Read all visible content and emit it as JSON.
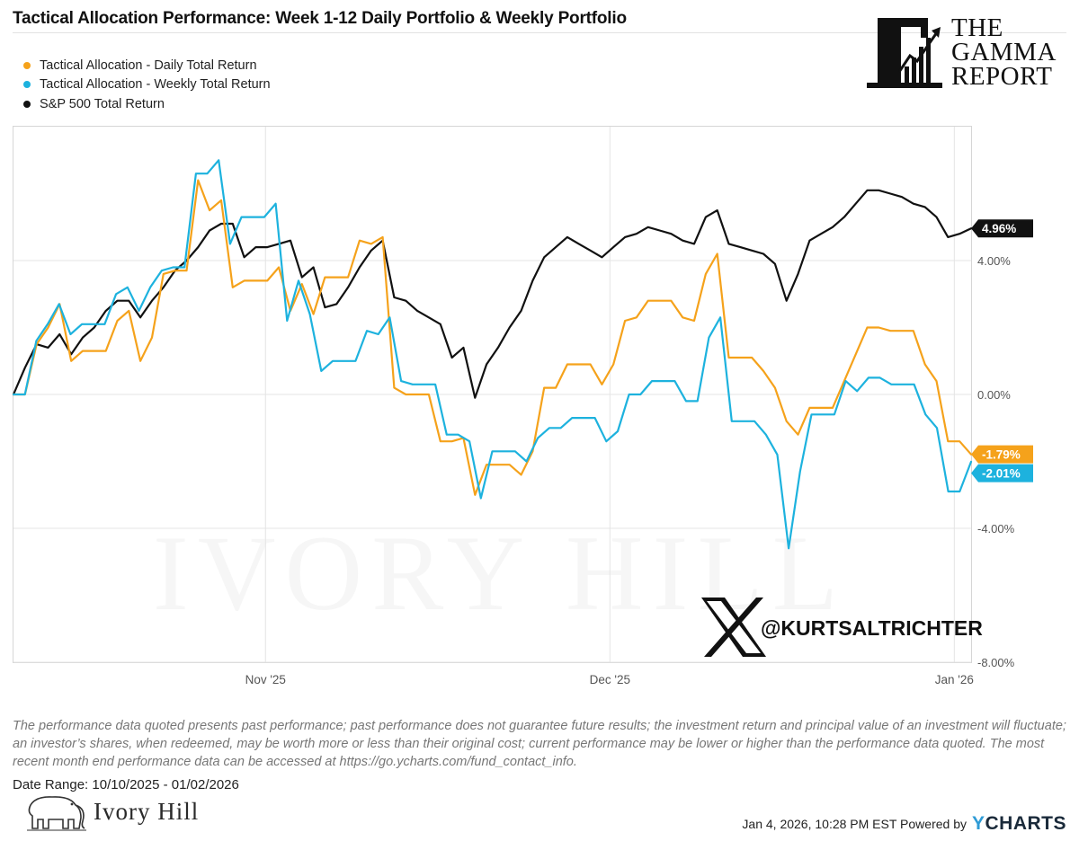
{
  "title": "Tactical Allocation Performance: Week 1-12 Daily Portfolio & Weekly Portfolio",
  "brand": {
    "name_lines": [
      "THE",
      "GAMMA",
      "REPORT"
    ]
  },
  "watermark": "IVORY HILL",
  "twitter_handle": "@KURTSALTRICHTER",
  "disclaimer": "The performance data quoted presents past performance; past performance does not guarantee future results; the investment return and principal value of an investment will fluctuate; an investor’s shares, when redeemed, may be worth more or less than their original cost; current performance may be lower or higher than the performance data quoted. The most recent month end performance data can be accessed at https://go.ycharts.com/fund_contact_info.",
  "date_range": "Date Range: 10/10/2025 - 01/02/2026",
  "footer_brand": "Ivory Hill",
  "footer_timestamp": "Jan 4, 2026, 10:28 PM EST Powered by",
  "powered_by": {
    "y": "Y",
    "rest": "CHARTS"
  },
  "chart_data": {
    "type": "line",
    "x_unit": "trading day",
    "x_domain": [
      0,
      57
    ],
    "ylim": [
      -8,
      8
    ],
    "y_ticks": [
      {
        "value": 4,
        "label": "4.00%"
      },
      {
        "value": 0,
        "label": "0.00%"
      },
      {
        "value": -4,
        "label": "-4.00%"
      },
      {
        "value": -8,
        "label": "-8.00%"
      }
    ],
    "x_ticks": [
      {
        "x": 15,
        "label": "Nov '25"
      },
      {
        "x": 35.5,
        "label": "Dec '25"
      },
      {
        "x": 56,
        "label": "Jan '26"
      }
    ],
    "grid": true,
    "legend_position": "top-left",
    "series": [
      {
        "name": "Tactical Allocation - Daily Total Return",
        "color": "#f5a21b",
        "end_label": "-1.79%",
        "values": [
          0,
          0,
          1.5,
          2.0,
          2.7,
          1.0,
          1.3,
          1.3,
          1.3,
          2.2,
          2.5,
          1.0,
          1.7,
          3.6,
          3.7,
          3.7,
          6.4,
          5.5,
          5.8,
          3.2,
          3.4,
          3.4,
          3.4,
          3.8,
          2.5,
          3.3,
          2.4,
          3.5,
          3.5,
          3.5,
          4.6,
          4.5,
          4.7,
          0.2,
          0,
          0,
          0,
          -1.4,
          -1.4,
          -1.3,
          -3.0,
          -2.1,
          -2.1,
          -2.1,
          -2.4,
          -1.7,
          0.2,
          0.2,
          0.9,
          0.9,
          0.9,
          0.3,
          0.9,
          2.2,
          2.3,
          2.8,
          2.8,
          2.8,
          2.3,
          2.2,
          3.6,
          4.2,
          1.1,
          1.1,
          1.1,
          0.7,
          0.2,
          -0.8,
          -1.2,
          -0.4,
          -0.4,
          -0.4,
          0.4,
          1.2,
          2.0,
          2.0,
          1.9,
          1.9,
          1.9,
          0.9,
          0.4,
          -1.4,
          -1.4,
          -1.79
        ]
      },
      {
        "name": "Tactical Allocation - Weekly Total Return",
        "color": "#1db2de",
        "end_label": "-2.01%",
        "values": [
          0,
          0,
          1.6,
          2.1,
          2.7,
          1.8,
          2.1,
          2.1,
          2.1,
          3.0,
          3.2,
          2.5,
          3.2,
          3.7,
          3.8,
          3.8,
          6.6,
          6.6,
          7.0,
          4.5,
          5.3,
          5.3,
          5.3,
          5.7,
          2.2,
          3.4,
          2.4,
          0.7,
          1.0,
          1.0,
          1.0,
          1.9,
          1.8,
          2.3,
          0.4,
          0.3,
          0.3,
          0.3,
          -1.2,
          -1.2,
          -1.4,
          -3.1,
          -1.7,
          -1.7,
          -1.7,
          -2.0,
          -1.3,
          -1.0,
          -1.0,
          -0.7,
          -0.7,
          -0.7,
          -1.4,
          -1.1,
          0,
          0,
          0.4,
          0.4,
          0.4,
          -0.2,
          -0.2,
          1.7,
          2.3,
          -0.8,
          -0.8,
          -0.8,
          -1.2,
          -1.8,
          -4.6,
          -2.3,
          -0.6,
          -0.6,
          -0.6,
          0.4,
          0.1,
          0.5,
          0.5,
          0.3,
          0.3,
          0.3,
          -0.6,
          -1.0,
          -2.9,
          -2.9,
          -2.01
        ]
      },
      {
        "name": "S&P 500 Total Return",
        "color": "#111111",
        "end_label": "4.96%",
        "values": [
          0,
          0.8,
          1.5,
          1.4,
          1.8,
          1.2,
          1.7,
          2.0,
          2.5,
          2.8,
          2.8,
          2.3,
          2.8,
          3.2,
          3.7,
          4.0,
          4.4,
          4.9,
          5.1,
          5.1,
          4.1,
          4.4,
          4.4,
          4.5,
          4.6,
          3.5,
          3.8,
          2.6,
          2.7,
          3.2,
          3.8,
          4.3,
          4.6,
          2.9,
          2.8,
          2.5,
          2.3,
          2.1,
          1.1,
          1.4,
          -0.1,
          0.9,
          1.4,
          2.0,
          2.5,
          3.4,
          4.1,
          4.4,
          4.7,
          4.5,
          4.3,
          4.1,
          4.4,
          4.7,
          4.8,
          5.0,
          4.9,
          4.8,
          4.6,
          4.5,
          5.3,
          5.5,
          4.5,
          4.4,
          4.3,
          4.2,
          3.9,
          2.8,
          3.6,
          4.6,
          4.8,
          5.0,
          5.3,
          5.7,
          6.1,
          6.1,
          6.0,
          5.9,
          5.7,
          5.6,
          5.3,
          4.7,
          4.8,
          4.96
        ]
      }
    ]
  }
}
